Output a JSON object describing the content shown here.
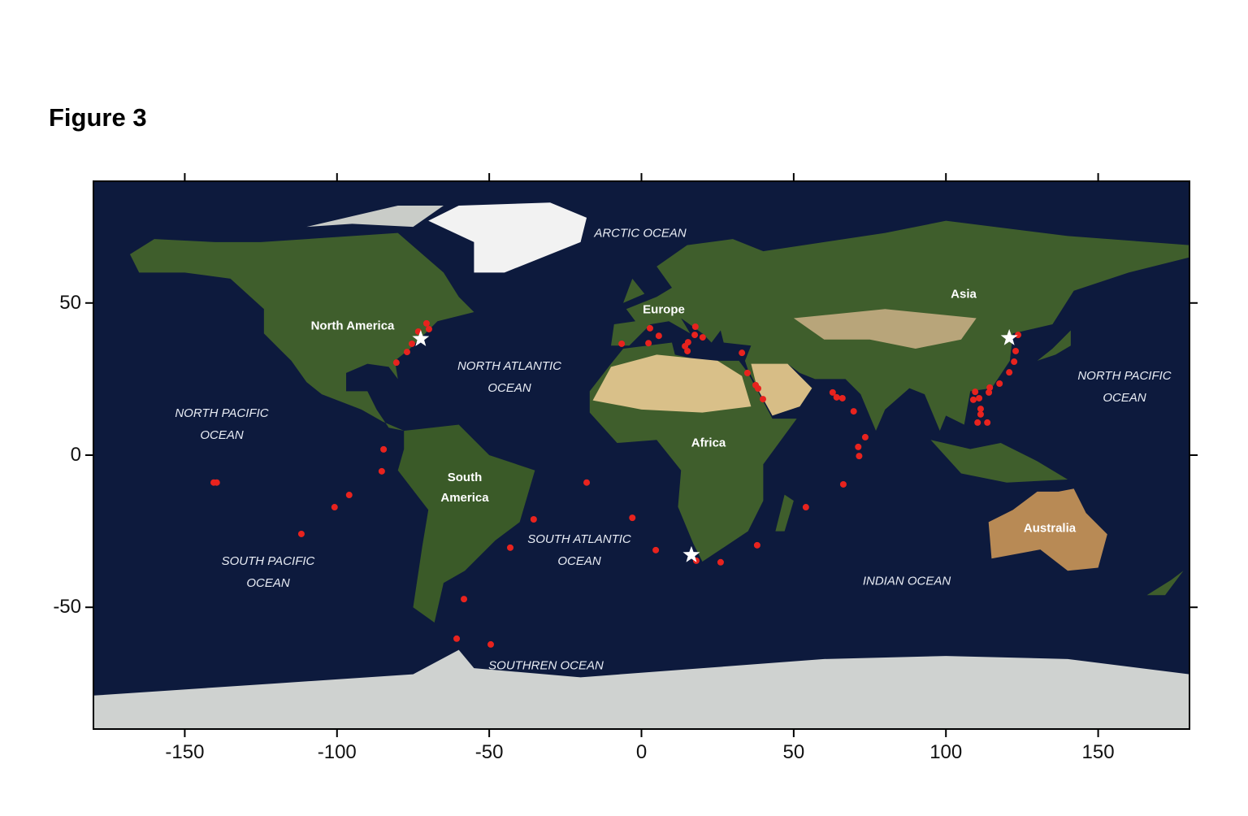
{
  "figure_title": "Figure 3",
  "chart_data": {
    "type": "scatter",
    "map_projection": "equirectangular",
    "xlim": [
      -180,
      180
    ],
    "ylim": [
      -90,
      90
    ],
    "x_ticks": [
      -150,
      -100,
      -50,
      0,
      50,
      100,
      150
    ],
    "y_ticks": [
      50,
      0,
      -50
    ],
    "xlabel": "",
    "ylabel": "",
    "grid": false,
    "colors": {
      "ocean": "#0d1a3d",
      "points": "#e8231e",
      "stars": "#ffffff"
    },
    "continent_labels": [
      "North America",
      "South America",
      "Europe",
      "Africa",
      "Asia",
      "Australia"
    ],
    "ocean_labels": [
      "ARCTIC OCEAN",
      "NORTH ATLANTIC OCEAN",
      "NORTH PACIFIC OCEAN",
      "NORTH PACIFIC OCEAN",
      "SOUTH PACIFIC OCEAN",
      "SOUTH ATLANTIC OCEAN",
      "INDIAN OCEAN",
      "SOUTHREN OCEAN"
    ],
    "stars": [
      [
        -72.5,
        38.2
      ],
      [
        16.4,
        -32.8
      ],
      [
        120.8,
        38.5
      ]
    ],
    "points": [
      [
        -70.6,
        43.3
      ],
      [
        -69.8,
        41.4
      ],
      [
        -73.3,
        40.6
      ],
      [
        -75.4,
        36.6
      ],
      [
        -77.0,
        33.9
      ],
      [
        -80.5,
        30.4
      ],
      [
        -84.7,
        1.9
      ],
      [
        -85.3,
        -5.3
      ],
      [
        -140.5,
        -9
      ],
      [
        -139.5,
        -9
      ],
      [
        -111.7,
        -25.9
      ],
      [
        -100.8,
        -17.1
      ],
      [
        -96,
        -13.1
      ],
      [
        -18,
        -9
      ],
      [
        -3,
        -20.6
      ],
      [
        -35.4,
        -21.1
      ],
      [
        -43.1,
        -30.4
      ],
      [
        4.7,
        -31.2
      ],
      [
        26,
        -35.2
      ],
      [
        38,
        -29.6
      ],
      [
        54,
        -17.1
      ],
      [
        66.3,
        -9.6
      ],
      [
        -58.3,
        -47.3
      ],
      [
        -60.7,
        -60.3
      ],
      [
        -49.5,
        -62.2
      ],
      [
        18,
        -34.7
      ],
      [
        -6.5,
        36.6
      ],
      [
        2.8,
        41.7
      ],
      [
        5.7,
        39.2
      ],
      [
        2.3,
        36.8
      ],
      [
        17.7,
        42.2
      ],
      [
        17.5,
        39.5
      ],
      [
        20.1,
        38.7
      ],
      [
        15.3,
        37.1
      ],
      [
        14.3,
        35.8
      ],
      [
        15.1,
        34.2
      ],
      [
        33,
        33.6
      ],
      [
        34.8,
        27
      ],
      [
        37.5,
        23
      ],
      [
        38.3,
        21.9
      ],
      [
        39.9,
        18.4
      ],
      [
        62.8,
        20.6
      ],
      [
        64.1,
        19
      ],
      [
        66,
        18.7
      ],
      [
        69.7,
        14.4
      ],
      [
        73.5,
        5.9
      ],
      [
        71.2,
        2.7
      ],
      [
        71.5,
        -0.3
      ],
      [
        123.7,
        39.5
      ],
      [
        122.9,
        34.2
      ],
      [
        122.4,
        30.7
      ],
      [
        120.8,
        27.2
      ],
      [
        117.6,
        23.5
      ],
      [
        114.4,
        22.2
      ],
      [
        109.6,
        20.8
      ],
      [
        110.9,
        18.7
      ],
      [
        111.4,
        15.2
      ],
      [
        111.4,
        13.4
      ],
      [
        110.4,
        10.7
      ],
      [
        113.6,
        10.7
      ],
      [
        109,
        18.2
      ],
      [
        114.1,
        20.6
      ]
    ]
  }
}
